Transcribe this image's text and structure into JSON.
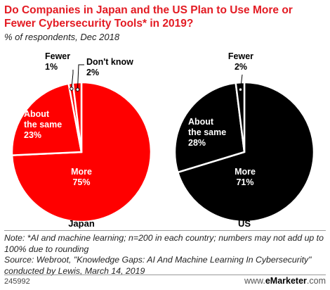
{
  "header": {
    "title": "Do Companies in Japan and the US Plan to Use More or Fewer Cybersecurity Tools* in 2019?",
    "subtitle": "% of respondents, Dec 2018"
  },
  "chart_data": [
    {
      "type": "pie",
      "country": "Japan",
      "color": "#ff0000",
      "slices": [
        {
          "label": "More",
          "value": 75
        },
        {
          "label": "About the same",
          "value": 23
        },
        {
          "label": "Fewer",
          "value": 1
        },
        {
          "label": "Don't know",
          "value": 2
        }
      ]
    },
    {
      "type": "pie",
      "country": "US",
      "color": "#000000",
      "slices": [
        {
          "label": "More",
          "value": 71
        },
        {
          "label": "About the same",
          "value": 28
        },
        {
          "label": "Fewer",
          "value": 2
        }
      ]
    }
  ],
  "footer": {
    "note": "Note: *AI and machine learning; n=200 in each country; numbers may not add up to 100% due to rounding",
    "source": "Source: Webroot, \"Knowledge Gaps: AI And Machine Learning In Cybersecurity\" conducted by Lewis, March 14, 2019",
    "chart_id": "245992",
    "brand_prefix": "www.",
    "brand_name": "eMarketer",
    "brand_suffix": ".com"
  }
}
